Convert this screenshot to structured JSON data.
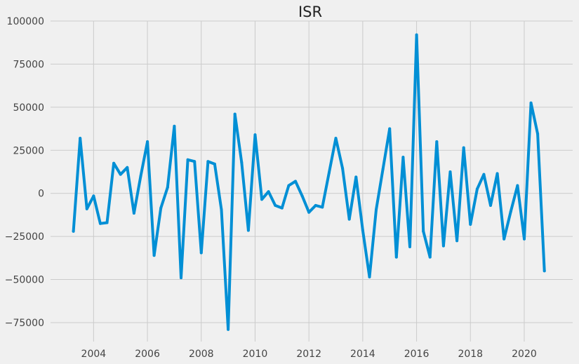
{
  "chart_data": {
    "type": "line",
    "title": "ISR",
    "xlabel": "",
    "ylabel": "",
    "xlim": [
      2002.4,
      2021.8
    ],
    "ylim": [
      -86000,
      100000
    ],
    "xticks": [
      2004,
      2006,
      2008,
      2010,
      2012,
      2014,
      2016,
      2018,
      2020
    ],
    "yticks": [
      -75000,
      -50000,
      -25000,
      0,
      25000,
      50000,
      75000,
      100000
    ],
    "ytick_labels": [
      "−75000",
      "−50000",
      "−25000",
      "0",
      "25000",
      "50000",
      "75000",
      "100000"
    ],
    "grid": true,
    "legend": "none",
    "series": [
      {
        "color": "#008fd5",
        "x": [
          2003.25,
          2003.5,
          2003.75,
          2004.0,
          2004.25,
          2004.5,
          2004.75,
          2005.0,
          2005.25,
          2005.5,
          2005.75,
          2006.0,
          2006.25,
          2006.5,
          2006.75,
          2007.0,
          2007.25,
          2007.5,
          2007.75,
          2008.0,
          2008.25,
          2008.5,
          2008.75,
          2009.0,
          2009.25,
          2009.5,
          2009.75,
          2010.0,
          2010.25,
          2010.5,
          2010.75,
          2011.0,
          2011.25,
          2011.5,
          2011.75,
          2012.0,
          2012.25,
          2012.5,
          2012.75,
          2013.0,
          2013.25,
          2013.5,
          2013.75,
          2014.0,
          2014.25,
          2014.5,
          2014.75,
          2015.0,
          2015.25,
          2015.5,
          2015.75,
          2016.0,
          2016.25,
          2016.5,
          2016.75,
          2017.0,
          2017.25,
          2017.5,
          2017.75,
          2018.0,
          2018.25,
          2018.5,
          2018.75,
          2019.0,
          2019.25,
          2019.5,
          2019.75,
          2020.0,
          2020.25,
          2020.5,
          2020.75
        ],
        "y": [
          -22000,
          32000,
          -9000,
          -1500,
          -17500,
          -17000,
          17500,
          11000,
          15000,
          -11500,
          10000,
          30000,
          -36000,
          -8500,
          3500,
          39000,
          -49000,
          19500,
          18500,
          -34500,
          18500,
          17000,
          -9500,
          -79000,
          46000,
          18000,
          -21500,
          34000,
          -3500,
          1000,
          -7000,
          -8500,
          4500,
          7000,
          -1500,
          -11000,
          -7000,
          -8000,
          12000,
          32000,
          14500,
          -15000,
          9500,
          -21500,
          -48500,
          -9500,
          14000,
          37500,
          -37000,
          21000,
          -31000,
          92000,
          -22000,
          -37000,
          30000,
          -30500,
          12500,
          -27500,
          26500,
          -18000,
          2500,
          11000,
          -7000,
          11500,
          -26500,
          -10500,
          4500,
          -26500,
          52500,
          34500,
          -45000
        ]
      }
    ]
  }
}
